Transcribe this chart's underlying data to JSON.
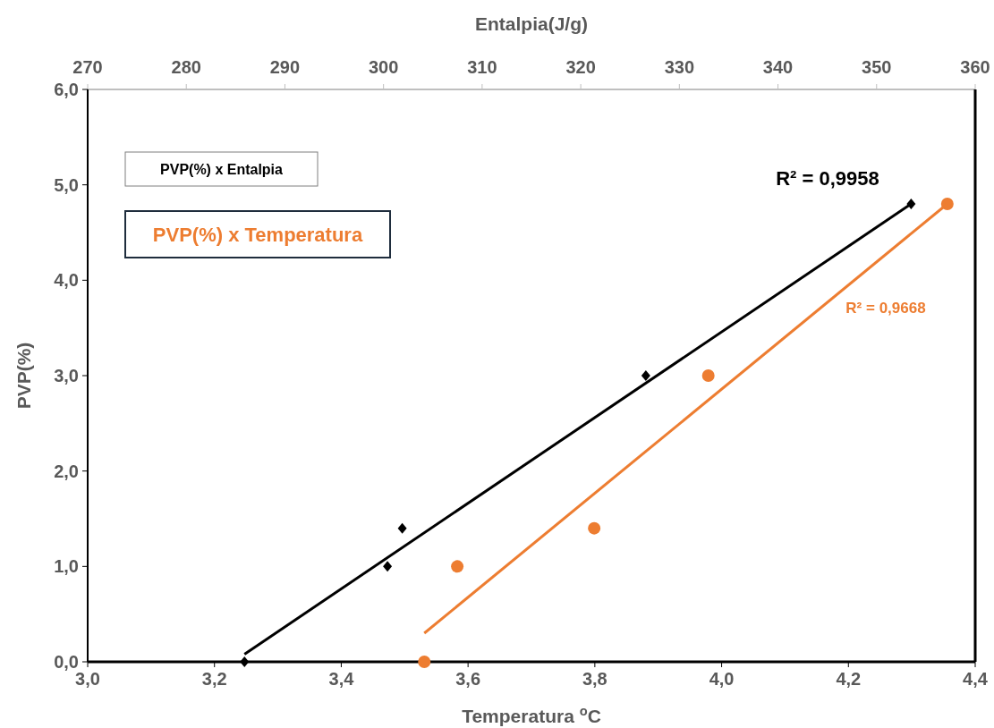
{
  "chart_data": {
    "type": "scatter",
    "xlabel": "Temperatura $^{o}$C",
    "ylabel": "PVP(%)",
    "x2label": "Entalpia(J/g)",
    "xlim": [
      3.0,
      4.4
    ],
    "xticks": [
      {
        "value": 3.0,
        "label": "3,0"
      },
      {
        "value": 3.2,
        "label": "3,2"
      },
      {
        "value": 3.4,
        "label": "3,4"
      },
      {
        "value": 3.6,
        "label": "3,6"
      },
      {
        "value": 3.8,
        "label": "3,8"
      },
      {
        "value": 4.0,
        "label": "4,0"
      },
      {
        "value": 4.2,
        "label": "4,2"
      },
      {
        "value": 4.4,
        "label": "4,4"
      }
    ],
    "x2lim": [
      270,
      360
    ],
    "x2ticks": [
      270,
      280,
      290,
      300,
      310,
      320,
      330,
      340,
      350,
      360
    ],
    "ylim": [
      0,
      6
    ],
    "yticks": [
      {
        "value": 0,
        "label": "0,0"
      },
      {
        "value": 1,
        "label": "1,0"
      },
      {
        "value": 2,
        "label": "2,0"
      },
      {
        "value": 3,
        "label": "3,0"
      },
      {
        "value": 4,
        "label": "4,0"
      },
      {
        "value": 5,
        "label": "5,0"
      },
      {
        "value": 6,
        "label": "6,0"
      }
    ],
    "grid": false,
    "legend": "top left",
    "series": [
      {
        "name": "PVP(%) x Entalpia",
        "axis": "x2",
        "marker": "diamond",
        "color": "#000000",
        "x": [
          285.9,
          300.4,
          301.9,
          326.6,
          353.5
        ],
        "values": [
          0,
          1.0,
          1.4,
          3.0,
          4.8
        ]
      },
      {
        "name": "PVP(%) x Temperatura",
        "marker": "circle",
        "color": "#ed7d31",
        "x": [
          3.531,
          3.583,
          3.799,
          3.979,
          4.356
        ],
        "values": [
          0,
          1.0,
          1.4,
          3.0,
          4.8
        ]
      },
      {
        "type": "line",
        "axis": "x2",
        "marker": "none",
        "color": "#000000",
        "x": [
          285.9,
          353.5
        ],
        "values": [
          0.08,
          4.8
        ]
      },
      {
        "type": "line",
        "marker": "none",
        "color": "#ed7d31",
        "x": [
          3.531,
          4.356
        ],
        "values": [
          0.3,
          4.8
        ]
      }
    ],
    "annotations": [
      "R² = 0,9958",
      "R² = 0,9668"
    ]
  }
}
